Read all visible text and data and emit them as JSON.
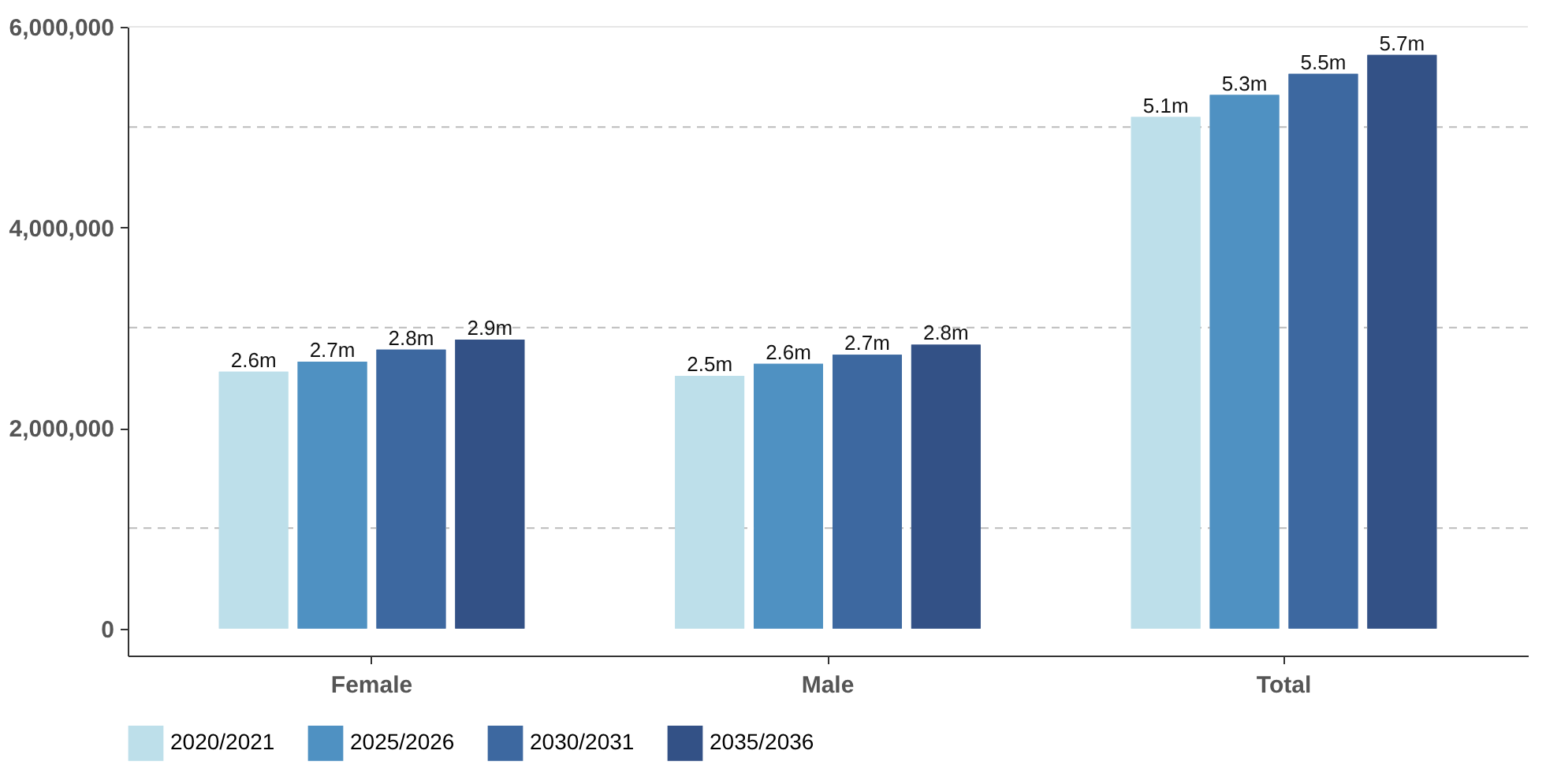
{
  "chart_data": {
    "type": "bar",
    "categories": [
      "Female",
      "Male",
      "Total"
    ],
    "series": [
      {
        "name": "2020/2021",
        "color": "#bddfea",
        "values": [
          2560000,
          2520000,
          5100000
        ],
        "value_labels": [
          "2.6m",
          "2.5m",
          "5.1m"
        ]
      },
      {
        "name": "2025/2026",
        "color": "#4f91c2",
        "values": [
          2660000,
          2640000,
          5320000
        ],
        "value_labels": [
          "2.7m",
          "2.6m",
          "5.3m"
        ]
      },
      {
        "name": "2030/2031",
        "color": "#3d68a0",
        "values": [
          2780000,
          2730000,
          5530000
        ],
        "value_labels": [
          "2.8m",
          "2.7m",
          "5.5m"
        ]
      },
      {
        "name": "2035/2036",
        "color": "#335186",
        "values": [
          2880000,
          2830000,
          5720000
        ],
        "value_labels": [
          "2.9m",
          "2.8m",
          "5.7m"
        ]
      }
    ],
    "ylim": [
      -270000,
      6000000
    ],
    "yticks": [
      0,
      {
        "value": 2000000,
        "label": "2,000,000"
      },
      {
        "value": 4000000,
        "label": "4,000,000"
      },
      {
        "value": 6000000,
        "label": "6,000,000"
      }
    ],
    "ref_lines": [
      {
        "axis": "y",
        "value": 1000000,
        "line_style": "dashed",
        "color": "#bbbbbb"
      },
      {
        "axis": "y",
        "value": 3000000,
        "line_style": "dashed",
        "color": "#bbbbbb"
      },
      {
        "axis": "y",
        "value": 5000000,
        "line_style": "dashed",
        "color": "#bbbbbb"
      },
      {
        "axis": "y",
        "value": 6000000,
        "line_style": "solid",
        "color": "#e6e6e6"
      }
    ],
    "grid": false,
    "legend": "bottom"
  }
}
